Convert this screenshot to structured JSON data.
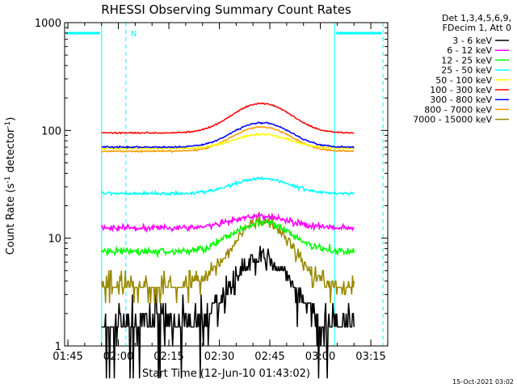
{
  "chart_data": {
    "type": "line",
    "title": "RHESSI Observing Summary Count Rates",
    "xlabel": "Start Time (12-Jun-10 01:43:02)",
    "ylabel": "Count Rate (s⁻¹ detector⁻¹)",
    "ylabel_main": "Count Rate (s",
    "ylabel_sup1": "-1",
    "ylabel_mid": " detector",
    "ylabel_sup2": "-1",
    "ylabel_end": ")",
    "y_scale": "log",
    "ylim": [
      1,
      1000
    ],
    "xlim_minutes": [
      1.0,
      97.0
    ],
    "x_tick_labels": [
      "01:45",
      "02:00",
      "02:15",
      "02:30",
      "02:45",
      "03:00",
      "03:15"
    ],
    "x_tick_minutes": [
      1.97,
      16.97,
      31.97,
      46.97,
      61.97,
      76.97,
      91.97
    ],
    "y_tick_labels": [
      "1",
      "10",
      "100",
      "1000"
    ],
    "y_tick_values": [
      1,
      10,
      100,
      1000
    ],
    "legend_header": [
      "Det 1,3,4,5,6,9,",
      "FDecim 1, Att 0"
    ],
    "legend_position": "right",
    "series": [
      {
        "name": "3 - 6 keV",
        "color": "#000000",
        "base": 1.6,
        "peak": 6.5,
        "peak_min": 59.5,
        "width": 10,
        "noise": 0.16,
        "step": 0.5,
        "quantized": true
      },
      {
        "name": "6 - 12 keV",
        "color": "#ff00ff",
        "base": 12.5,
        "peak": 16,
        "peak_min": 59.5,
        "width": 11,
        "noise": 0.05
      },
      {
        "name": "12 - 25 keV",
        "color": "#00ff00",
        "base": 7.5,
        "peak": 14,
        "peak_min": 59.5,
        "width": 11,
        "noise": 0.06
      },
      {
        "name": "25 - 50 keV",
        "color": "#00ffff",
        "base": 26,
        "peak": 36,
        "peak_min": 59.5,
        "width": 11,
        "noise": 0.025
      },
      {
        "name": "50 - 100 keV",
        "color": "#ffff00",
        "base": 68,
        "peak": 92,
        "peak_min": 59.5,
        "width": 11,
        "noise": 0.015
      },
      {
        "name": "100 - 300 keV",
        "color": "#ff0000",
        "base": 95,
        "peak": 178,
        "peak_min": 59.5,
        "width": 11,
        "noise": 0.01
      },
      {
        "name": "300 - 800 keV",
        "color": "#0000ff",
        "base": 70,
        "peak": 118,
        "peak_min": 59.5,
        "width": 11,
        "noise": 0.012
      },
      {
        "name": "800 - 7000 keV",
        "color": "#ff9900",
        "base": 64,
        "peak": 108,
        "peak_min": 59.5,
        "width": 11,
        "noise": 0.012
      },
      {
        "name": "7000 - 15000 keV",
        "color": "#998800",
        "base": 3.6,
        "peak": 14.5,
        "peak_min": 59.5,
        "width": 10,
        "noise": 0.08,
        "step": 0.5,
        "quantized": true
      }
    ],
    "data_start_min": 12.0,
    "data_end_min": 87.0,
    "night_markers": [
      {
        "label": "N",
        "solid_min": 12.0,
        "dash_min": 19.2,
        "bar": [
          1.0,
          12.0
        ]
      },
      {
        "label": "",
        "solid_min": 81.2,
        "dash_min": 95.6,
        "bar": [
          81.2,
          95.6
        ]
      }
    ],
    "marker_color": "#00ffff"
  },
  "footer_timestamp": "15-Oct-2021 03:02"
}
